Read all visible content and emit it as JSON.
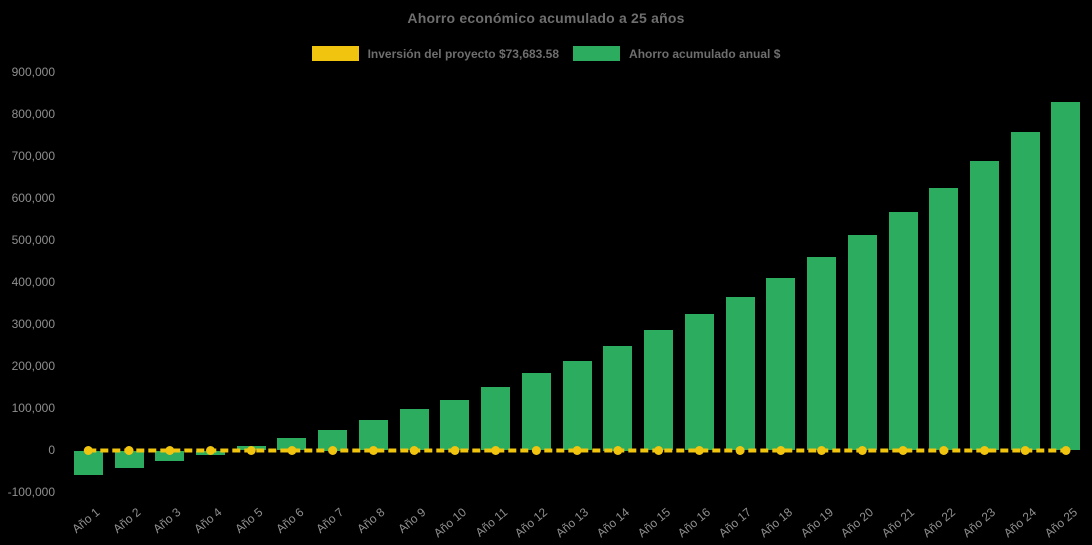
{
  "page": {
    "background": "#000000",
    "title_color": "#6e6e6e",
    "tick_color": "#8f8f8f"
  },
  "chart_data": {
    "type": "bar",
    "title": "Ahorro económico acumulado a 25 años",
    "xlabel": "",
    "ylabel": "",
    "categories": [
      "Año 1",
      "Año 2",
      "Año 3",
      "Año 4",
      "Año 5",
      "Año 6",
      "Año 7",
      "Año 8",
      "Año 9",
      "Año 10",
      "Año 11",
      "Año 12",
      "Año 13",
      "Año 14",
      "Año 15",
      "Año 16",
      "Año 17",
      "Año 18",
      "Año 19",
      "Año 20",
      "Año 21",
      "Año 22",
      "Año 23",
      "Año 24",
      "Año 25"
    ],
    "series": [
      {
        "name": "Inversión del proyecto $73,683.58",
        "type": "line",
        "line_style": "dashed",
        "marker": "circle",
        "color": "#f1c40f",
        "values": [
          0,
          0,
          0,
          0,
          0,
          0,
          0,
          0,
          0,
          0,
          0,
          0,
          0,
          0,
          0,
          0,
          0,
          0,
          0,
          0,
          0,
          0,
          0,
          0,
          0
        ]
      },
      {
        "name": "Ahorro acumulado anual $",
        "type": "bar",
        "color": "#2cac5e",
        "values": [
          -58000,
          -41000,
          -26000,
          -11000,
          11000,
          30000,
          50000,
          73000,
          98000,
          121000,
          151000,
          184000,
          213000,
          250000,
          286000,
          324000,
          366000,
          410000,
          461000,
          512000,
          567000,
          626000,
          690000,
          758000,
          830000
        ]
      }
    ],
    "ylim": [
      -100000,
      900000
    ],
    "yticks": [
      900000,
      800000,
      700000,
      600000,
      500000,
      400000,
      300000,
      200000,
      100000,
      0,
      -100000
    ],
    "ytick_labels": [
      "900,000",
      "800,000",
      "700,000",
      "600,000",
      "500,000",
      "400,000",
      "300,000",
      "200,000",
      "100,000",
      "0",
      "-100,000"
    ],
    "grid": false,
    "legend_position": "top-center"
  }
}
